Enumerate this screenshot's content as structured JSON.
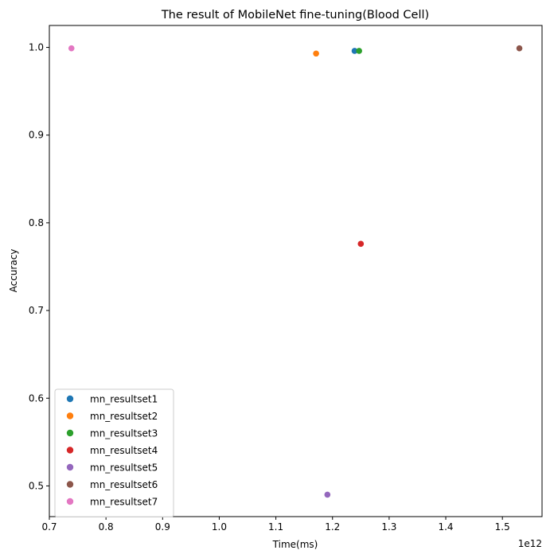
{
  "chart_data": {
    "type": "scatter",
    "title": "The result of MobileNet fine-tuning(Blood Cell)",
    "xlabel": "Time(ms)",
    "ylabel": "Accuracy",
    "x_offset_label": "1e12",
    "xlim": [
      0.7,
      1.57
    ],
    "ylim": [
      0.465,
      1.025
    ],
    "xticks": [
      "0.7",
      "0.8",
      "0.9",
      "1.0",
      "1.1",
      "1.2",
      "1.3",
      "1.4",
      "1.5"
    ],
    "yticks": [
      "0.5",
      "0.6",
      "0.7",
      "0.8",
      "0.9",
      "1.0"
    ],
    "grid": false,
    "legend_position": "lower-left",
    "series": [
      {
        "name": "mn_resultset1",
        "color": "#1f77b4",
        "points": [
          {
            "x": 1.239,
            "y": 0.996
          }
        ]
      },
      {
        "name": "mn_resultset2",
        "color": "#ff7f0e",
        "points": [
          {
            "x": 1.171,
            "y": 0.993
          }
        ]
      },
      {
        "name": "mn_resultset3",
        "color": "#2ca02c",
        "points": [
          {
            "x": 1.247,
            "y": 0.996
          }
        ]
      },
      {
        "name": "mn_resultset4",
        "color": "#d62728",
        "points": [
          {
            "x": 1.25,
            "y": 0.776
          }
        ]
      },
      {
        "name": "mn_resultset5",
        "color": "#9467bd",
        "points": [
          {
            "x": 1.191,
            "y": 0.49
          }
        ]
      },
      {
        "name": "mn_resultset6",
        "color": "#8c564b",
        "points": [
          {
            "x": 1.53,
            "y": 0.999
          }
        ]
      },
      {
        "name": "mn_resultset7",
        "color": "#e377c2",
        "points": [
          {
            "x": 0.739,
            "y": 0.999
          }
        ]
      }
    ]
  }
}
